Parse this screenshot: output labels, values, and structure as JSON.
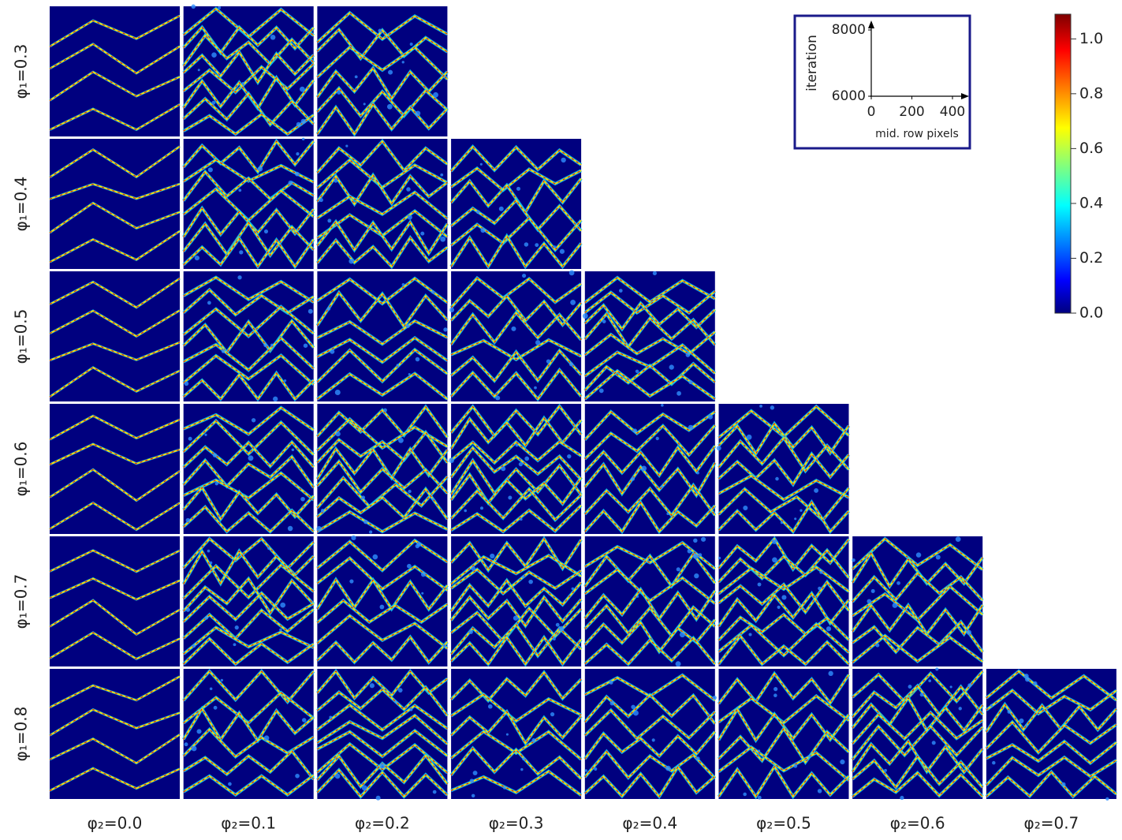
{
  "chart_data": {
    "type": "heatmap-grid",
    "row_labels": [
      "φ₁=0.3",
      "φ₁=0.4",
      "φ₁=0.5",
      "φ₁=0.6",
      "φ₁=0.7",
      "φ₁=0.8"
    ],
    "column_labels": [
      "φ₂=0.0",
      "φ₂=0.1",
      "φ₂=0.2",
      "φ₂=0.3",
      "φ₂=0.4",
      "φ₂=0.5",
      "φ₂=0.6",
      "φ₂=0.7"
    ],
    "inset": {
      "ylabel": "iteration",
      "xlabel": "mid. row pixels",
      "ylim": [
        6000,
        8000
      ],
      "yticks": [
        6000,
        8000
      ],
      "xlim": [
        0,
        400
      ],
      "xticks": [
        0,
        200,
        400
      ]
    },
    "colorbar": {
      "lim": [
        0,
        1.09
      ],
      "ticks": [
        {
          "value": 0,
          "label": "0.0"
        },
        {
          "value": 0.2,
          "label": "0.2"
        },
        {
          "value": 0.4,
          "label": "0.4"
        },
        {
          "value": 0.6,
          "label": "0.6"
        },
        {
          "value": 0.8,
          "label": "0.8"
        },
        {
          "value": 1,
          "label": "1.0"
        }
      ],
      "colormap": "jet"
    }
  }
}
